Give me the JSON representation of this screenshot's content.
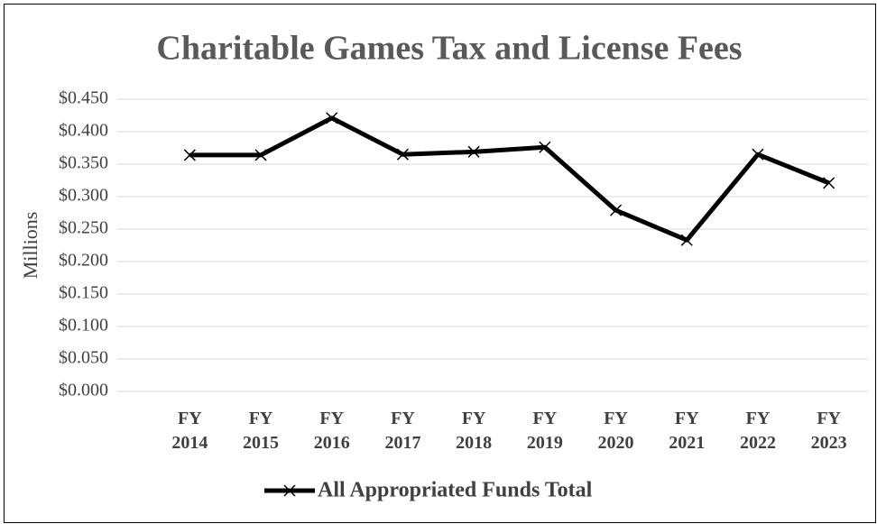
{
  "chart_data": {
    "type": "line",
    "title": "Charitable Games Tax and License Fees",
    "y_label": "Millions",
    "categories": [
      "FY 2014",
      "FY 2015",
      "FY 2016",
      "FY 2017",
      "FY 2018",
      "FY 2019",
      "FY 2020",
      "FY 2021",
      "FY 2022",
      "FY 2023"
    ],
    "series": [
      {
        "name": "All Appropriated Funds Total",
        "color": "#000000",
        "values": [
          0.364,
          0.364,
          0.421,
          0.365,
          0.369,
          0.376,
          0.279,
          0.233,
          0.365,
          0.321
        ]
      }
    ],
    "ylim": [
      0,
      0.45
    ],
    "yticks": [
      {
        "value": 0,
        "label": "$0.000"
      },
      {
        "value": 0.05,
        "label": "$0.050"
      },
      {
        "value": 0.1,
        "label": "$0.100"
      },
      {
        "value": 0.15,
        "label": "$0.150"
      },
      {
        "value": 0.2,
        "label": "$0.200"
      },
      {
        "value": 0.25,
        "label": "$0.250"
      },
      {
        "value": 0.3,
        "label": "$0.300"
      },
      {
        "value": 0.35,
        "label": "$0.350"
      },
      {
        "value": 0.4,
        "label": "$0.400"
      },
      {
        "value": 0.45,
        "label": "$0.450"
      }
    ],
    "grid": true,
    "legend": "bottom"
  }
}
